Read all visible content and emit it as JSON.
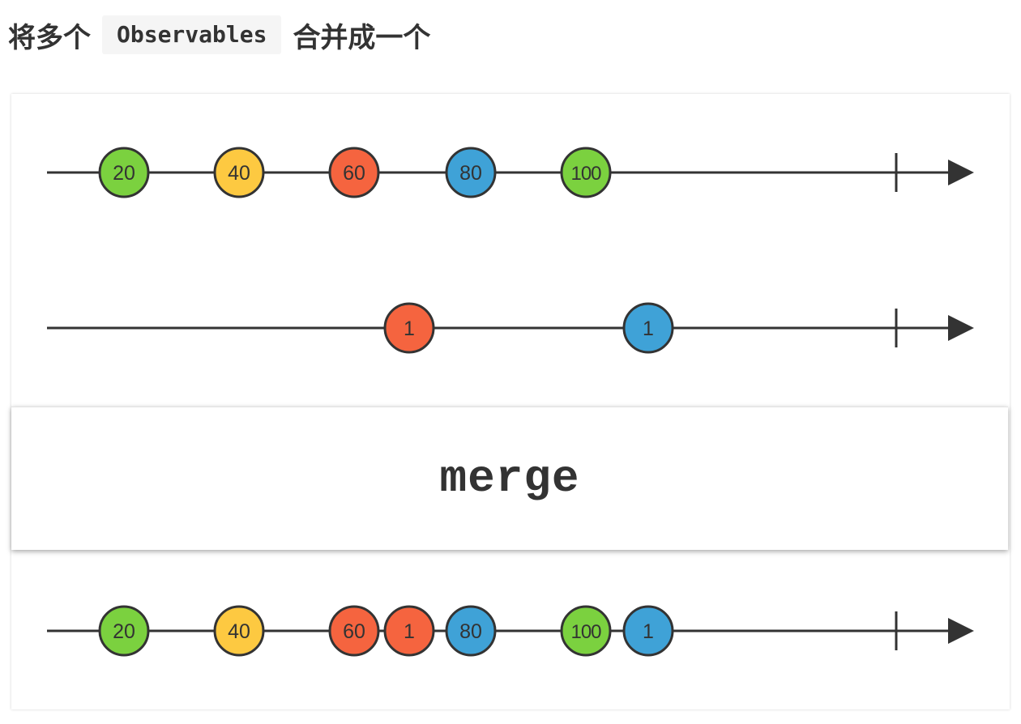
{
  "heading": {
    "before": "将多个",
    "code": "Observables",
    "after": "合并成一个"
  },
  "operator": {
    "label": "merge"
  },
  "colors": {
    "green": "#7bd13f",
    "yellow": "#fdc941",
    "red": "#f5643f",
    "blue": "#3fa2d7",
    "line": "#333333"
  },
  "timelines": [
    {
      "name": "input-1",
      "marbles": [
        {
          "label": "20",
          "color": "green"
        },
        {
          "label": "40",
          "color": "yellow"
        },
        {
          "label": "60",
          "color": "red"
        },
        {
          "label": "80",
          "color": "blue"
        },
        {
          "label": "100",
          "color": "green"
        }
      ]
    },
    {
      "name": "input-2",
      "marbles": [
        {
          "label": "1",
          "color": "red"
        },
        {
          "label": "1",
          "color": "blue"
        }
      ]
    },
    {
      "name": "output",
      "marbles": [
        {
          "label": "20",
          "color": "green"
        },
        {
          "label": "40",
          "color": "yellow"
        },
        {
          "label": "60",
          "color": "red"
        },
        {
          "label": "1",
          "color": "red"
        },
        {
          "label": "80",
          "color": "blue"
        },
        {
          "label": "100",
          "color": "green"
        },
        {
          "label": "1",
          "color": "blue"
        }
      ]
    }
  ]
}
